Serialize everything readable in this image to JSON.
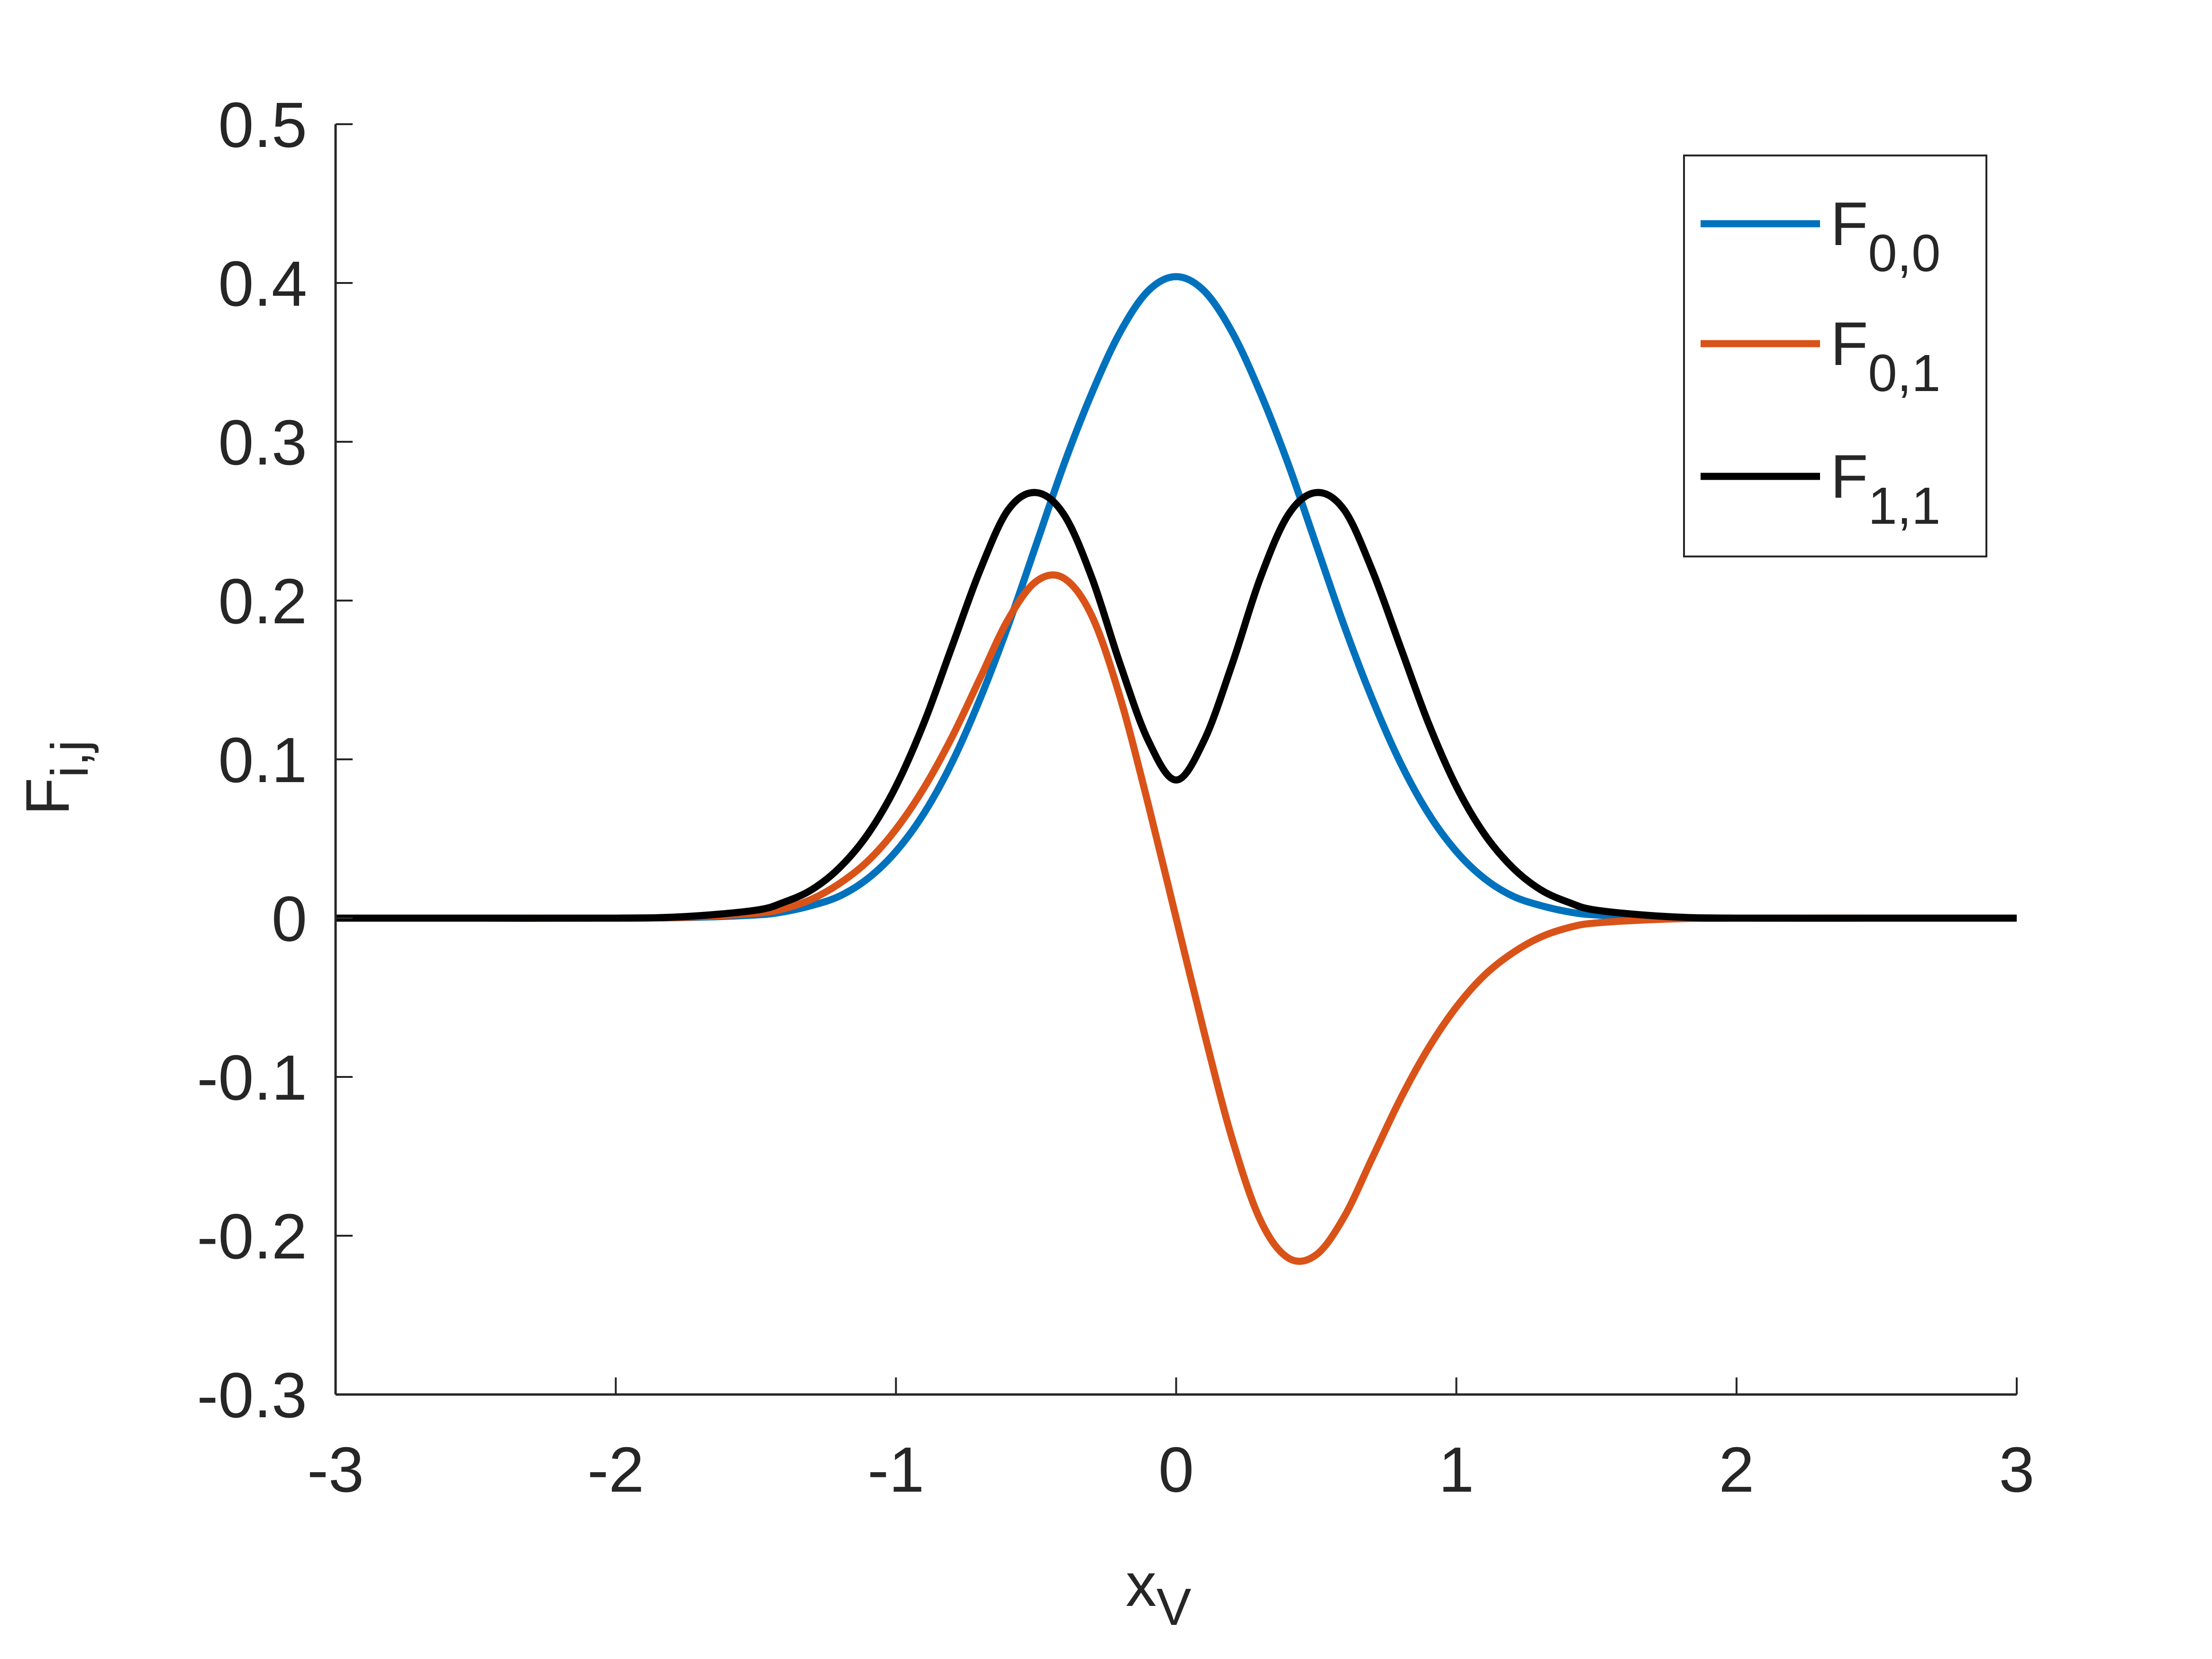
{
  "chart_data": {
    "type": "line",
    "title": "",
    "xlabel": "x",
    "xlabel_sub": "V",
    "ylabel": "F",
    "ylabel_sub": "i,j",
    "xlim": [
      -3,
      3
    ],
    "ylim": [
      -0.3,
      0.5
    ],
    "grid": false,
    "legend_position": "top-right",
    "xticks": [
      -3,
      -2,
      -1,
      0,
      1,
      2,
      3
    ],
    "xtick_labels": [
      "-3",
      "-2",
      "-1",
      "0",
      "1",
      "2",
      "3"
    ],
    "yticks": [
      -0.3,
      -0.2,
      -0.1,
      0,
      0.1,
      0.2,
      0.3,
      0.4,
      0.5
    ],
    "ytick_labels": [
      "-0.3",
      "-0.2",
      "-0.1",
      "0",
      "0.1",
      "0.2",
      "0.3",
      "0.4",
      "0.5"
    ],
    "x": [
      -3.0,
      -2.5,
      -2.0,
      -1.75,
      -1.5,
      -1.4,
      -1.3,
      -1.2,
      -1.1,
      -1.0,
      -0.9,
      -0.8,
      -0.7,
      -0.6,
      -0.5,
      -0.4,
      -0.3,
      -0.2,
      -0.1,
      0.0,
      0.1,
      0.2,
      0.3,
      0.4,
      0.5,
      0.6,
      0.7,
      0.8,
      0.9,
      1.0,
      1.1,
      1.2,
      1.3,
      1.4,
      1.5,
      1.75,
      2.0,
      2.5,
      3.0
    ],
    "series": [
      {
        "name": "F",
        "name_sub": "0,0",
        "color": "#0072BD",
        "values": [
          0.0,
          0.0,
          0.0,
          0.0004,
          0.002,
          0.004,
          0.008,
          0.014,
          0.025,
          0.042,
          0.066,
          0.098,
          0.138,
          0.184,
          0.235,
          0.286,
          0.331,
          0.369,
          0.395,
          0.404,
          0.395,
          0.369,
          0.331,
          0.286,
          0.235,
          0.184,
          0.138,
          0.098,
          0.066,
          0.042,
          0.025,
          0.014,
          0.008,
          0.004,
          0.002,
          0.0004,
          0.0,
          0.0,
          0.0
        ]
      },
      {
        "name": "F",
        "name_sub": "0,1",
        "color": "#D95319",
        "values": [
          0.0,
          0.0,
          0.0,
          0.0006,
          0.003,
          0.006,
          0.012,
          0.022,
          0.036,
          0.056,
          0.082,
          0.114,
          0.151,
          0.188,
          0.212,
          0.214,
          0.19,
          0.139,
          0.072,
          0.0,
          -0.072,
          -0.139,
          -0.19,
          -0.214,
          -0.212,
          -0.188,
          -0.151,
          -0.114,
          -0.082,
          -0.056,
          -0.036,
          -0.022,
          -0.012,
          -0.006,
          -0.003,
          -0.0006,
          0.0,
          0.0,
          0.0
        ]
      },
      {
        "name": "F",
        "name_sub": "1,1",
        "color": "#000000",
        "values": [
          0.0,
          0.0,
          0.0,
          0.001,
          0.005,
          0.01,
          0.018,
          0.032,
          0.053,
          0.083,
          0.123,
          0.171,
          0.219,
          0.257,
          0.268,
          0.254,
          0.214,
          0.16,
          0.112,
          0.087,
          0.112,
          0.16,
          0.214,
          0.254,
          0.268,
          0.257,
          0.219,
          0.171,
          0.123,
          0.083,
          0.053,
          0.032,
          0.018,
          0.01,
          0.005,
          0.001,
          0.0,
          0.0,
          0.0
        ]
      }
    ]
  }
}
